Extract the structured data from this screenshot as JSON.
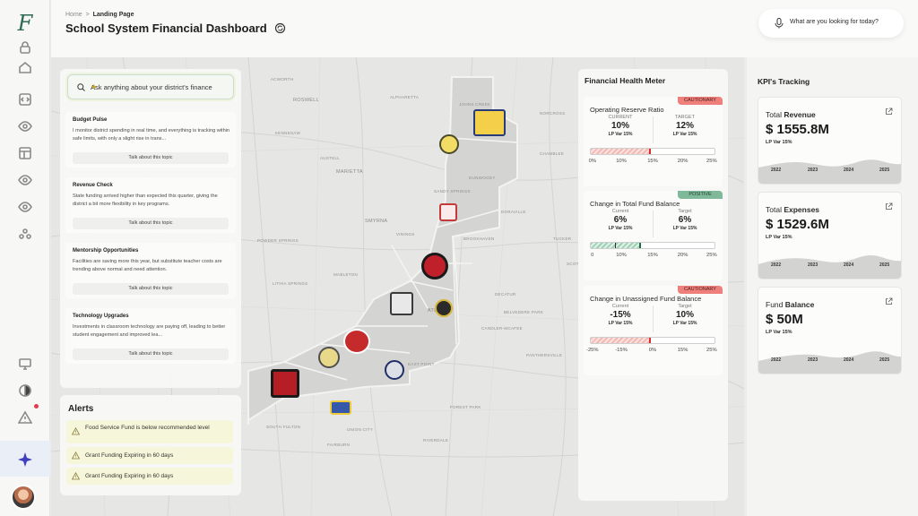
{
  "breadcrumb": {
    "home": "Home",
    "separator": ">",
    "current": "Landing Page"
  },
  "page_title": "School System Financial Dashboard",
  "search": {
    "placeholder": "What are you looking for today?"
  },
  "rail": {
    "logo": "F",
    "icons": [
      "lock-icon",
      "home-icon",
      "code-icon",
      "eye-icon",
      "layout-icon",
      "eye-icon",
      "eye-icon",
      "users-icon",
      "monitor-icon",
      "contrast-icon",
      "alert-icon",
      "sparkle-icon"
    ]
  },
  "ask": {
    "placeholder": "Ask anything about your district's finance"
  },
  "topics": [
    {
      "title": "Budget Pulse",
      "desc": "I monitor district spending in real time, and everything is tracking within safe limits, with only a slight rise in trans...",
      "button": "Talk about this topic"
    },
    {
      "title": "Revenue Check",
      "desc": "State funding arrived higher than expected this quarter, giving the district a bit more flexibility in key programs.",
      "button": "Talk about this topic"
    },
    {
      "title": "Mentorship Opportunities",
      "desc": "Facilities are saving more this year, but substitute teacher costs are trending above normal and need attention.",
      "button": "Talk about this topic"
    },
    {
      "title": "Technology Upgrades",
      "desc": "Investments in classroom technology are paying off, leading to better student engagement and improved lea...",
      "button": "Talk about this topic"
    }
  ],
  "alerts": {
    "title": "Alerts",
    "items": [
      "Food Service Fund is below recommended level",
      "Grant Funding Expiring in 60 days",
      "Grant Funding Expiring in 60 days"
    ]
  },
  "map_labels": [
    "ROSWELL",
    "MARIETTA",
    "SMYRNA",
    "SANDY SPRINGS",
    "Dunwoody",
    "Chamblee",
    "Doraville",
    "Brookhaven",
    "Vinings",
    "Powder Springs",
    "Austell",
    "Lithia Springs",
    "Mableton",
    "ATLANTA",
    "Decatur",
    "Tucker",
    "Belvedere Park",
    "Candler-McAfee",
    "East Point",
    "Forest Park",
    "Union City",
    "Fairburn",
    "Riverdale",
    "South Fulton",
    "Panthersville",
    "Redan",
    "Stone Mountain",
    "Lilburn",
    "Norcross",
    "Johns Creek",
    "Alpharetta",
    "Acworth",
    "Kennesaw",
    "Scottdale"
  ],
  "health_meter": {
    "title": "Financial Health Meter",
    "meters": [
      {
        "title": "Operating Reserve Ratio",
        "badge": "CAUTIONARY",
        "badge_type": "caution",
        "current_label": "CURRENT",
        "current": "10%",
        "current_sub": "LP Var 15%",
        "target_label": "TARGET",
        "target": "12%",
        "target_sub": "LP Var 15%",
        "ticks": [
          "0%",
          "10%",
          "15%",
          "20%",
          "25%"
        ],
        "fill": 0.48,
        "fill_color": "red",
        "marker": 0.48,
        "marker_color": "#d3302d"
      },
      {
        "title": "Change in Total Fund Balance",
        "badge": "POSITIVE",
        "badge_type": "positive",
        "current_label": "Current",
        "current": "6%",
        "current_sub": "LP Var 15%",
        "target_label": "Target",
        "target": "6%",
        "target_sub": "LP Var 15%",
        "ticks": [
          "0",
          "10%",
          "15%",
          "20%",
          "25%"
        ],
        "fill": 0.4,
        "fill_color": "green",
        "marker": 0.4,
        "marker_color": "#1e6e45",
        "marker2": 0.2,
        "marker2_color": "#333"
      },
      {
        "title": "Change in Unassigned Fund Balance",
        "badge": "CAUTIONARY",
        "badge_type": "caution",
        "current_label": "Current",
        "current": "-15%",
        "current_sub": "LP Var 15%",
        "target_label": "Target",
        "target": "10%",
        "target_sub": "LP Var 15%",
        "ticks": [
          "-25%",
          "-15%",
          "0%",
          "15%",
          "25%"
        ],
        "fill": 0.48,
        "fill_color": "red",
        "marker": 0.48,
        "marker_color": "#d3302d"
      }
    ]
  },
  "kpis": {
    "title": "KPI's Tracking",
    "items": [
      {
        "label_pre": "Total",
        "label_bold": "Revenue",
        "value": "$ 1555.8M",
        "sub": "LP Var 15%",
        "years": [
          "2022",
          "2023",
          "2024",
          "2025"
        ]
      },
      {
        "label_pre": "Total",
        "label_bold": "Expenses",
        "value": "$ 1529.6M",
        "sub": "LP Var 15%",
        "years": [
          "2022",
          "2023",
          "2024",
          "2025"
        ]
      },
      {
        "label_pre": "Fund",
        "label_bold": "Balance",
        "value": "$ 50M",
        "sub": "LP Var 15%",
        "years": [
          "2022",
          "2023",
          "2024",
          "2025"
        ]
      }
    ]
  },
  "colors": {
    "accent_green": "#2f6b4f",
    "caution": "#ef7f7a",
    "positive": "#7fb99a",
    "alert_bg": "#f6f6da"
  }
}
